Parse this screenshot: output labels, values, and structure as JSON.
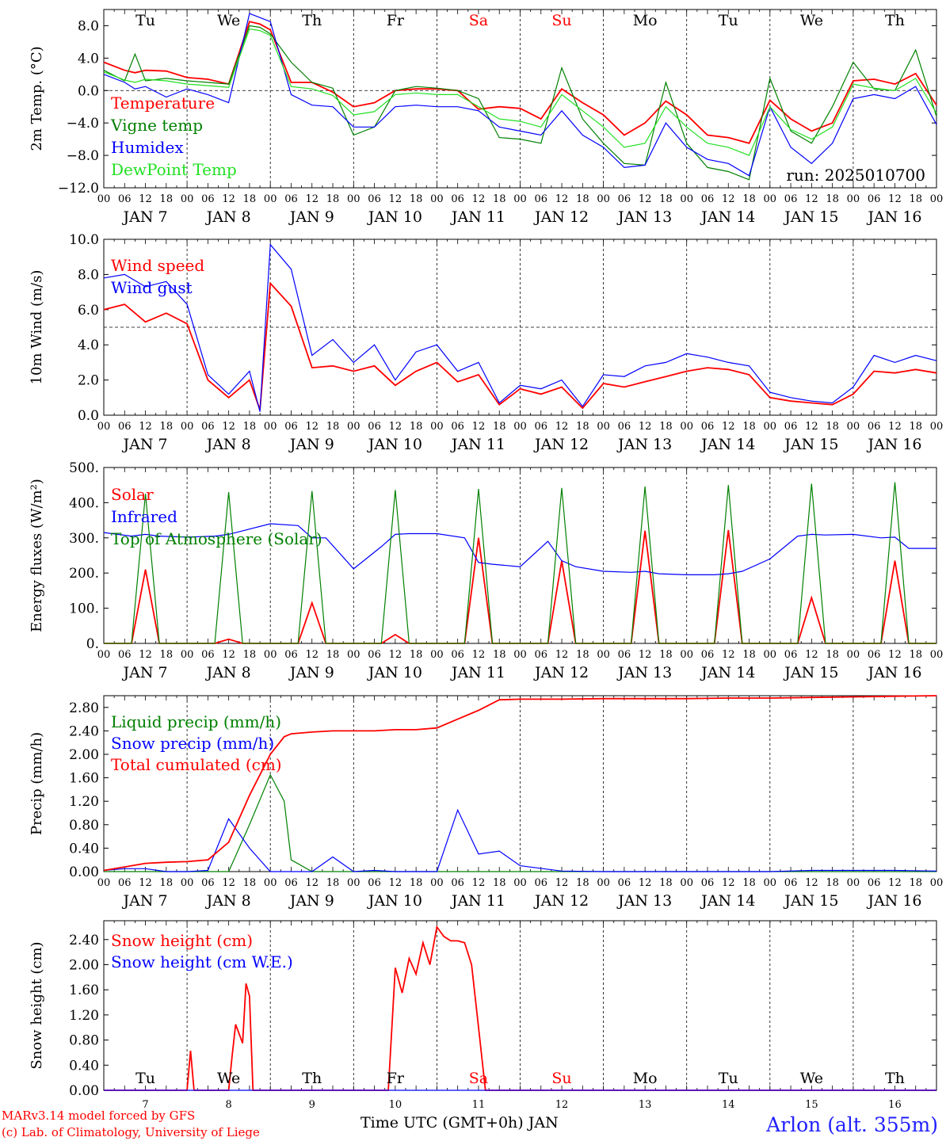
{
  "footer": {
    "model": "MARv3.14 model forced by GFS",
    "credit": "(c) Lab. of Climatology, University of Liege",
    "xlabel": "Time UTC (GMT+0h) JAN",
    "station": "Arlon (alt. 355m)"
  },
  "colors": {
    "red": "#ff0000",
    "green": "#008000",
    "blue": "#0000ff",
    "lightgreen": "#22e022",
    "grid": "#000000"
  },
  "days": {
    "names": [
      "Tu",
      "We",
      "Th",
      "Fr",
      "Sa",
      "Su",
      "Mo",
      "Tu",
      "We",
      "Th"
    ],
    "weekend": [
      false,
      false,
      false,
      false,
      true,
      true,
      false,
      false,
      false,
      false
    ],
    "month_labels": [
      "JAN 7",
      "JAN 8",
      "JAN 9",
      "JAN 10",
      "JAN 11",
      "JAN 12",
      "JAN 13",
      "JAN 14",
      "JAN 15",
      "JAN 16"
    ],
    "numbers": [
      "7",
      "8",
      "9",
      "10",
      "11",
      "12",
      "13",
      "14",
      "15",
      "16"
    ],
    "hour_ticks": [
      "00",
      "06",
      "12",
      "18"
    ],
    "final_tick": "00"
  },
  "chart_data": [
    {
      "type": "line",
      "ylabel": "2m Temp. (°C)",
      "ylim": [
        -12,
        10
      ],
      "yticks": [
        "8.0",
        "4.0",
        "0.0",
        "−4.0",
        "−8.0",
        "−12.0"
      ],
      "ytick_values": [
        8,
        4,
        0,
        -4,
        -8,
        -12
      ],
      "reference_line": 0,
      "show_dow": true,
      "note": "run: 2025010700",
      "x_unit": "hours since JAN 7 00 UTC",
      "x": [
        0,
        6,
        9,
        12,
        18,
        24,
        30,
        36,
        42,
        45,
        48,
        54,
        60,
        66,
        72,
        78,
        84,
        90,
        96,
        102,
        108,
        114,
        120,
        126,
        132,
        138,
        144,
        150,
        156,
        162,
        168,
        174,
        180,
        186,
        192,
        198,
        204,
        210,
        216,
        222,
        228,
        234,
        240
      ],
      "series": [
        {
          "name": "Temperature",
          "color": "#ff0000",
          "values": [
            3.5,
            2.5,
            2.2,
            2.5,
            2.4,
            1.6,
            1.4,
            0.8,
            8.5,
            8.2,
            7.5,
            1.0,
            1.0,
            -0.2,
            -2.0,
            -1.5,
            0.0,
            0.2,
            0.2,
            0.0,
            -2.3,
            -2.0,
            -2.2,
            -3.5,
            0.2,
            -1.5,
            -3.0,
            -5.5,
            -4.0,
            -1.3,
            -3.0,
            -5.5,
            -5.8,
            -6.5,
            -1.2,
            -3.5,
            -5.0,
            -4.0,
            1.2,
            1.4,
            0.8,
            2.1,
            -1.8
          ]
        },
        {
          "name": "Vigne temp",
          "color": "#008000",
          "values": [
            2.5,
            1.2,
            4.5,
            1.2,
            1.5,
            1.2,
            1.0,
            0.8,
            8.0,
            7.8,
            7.0,
            3.5,
            1.0,
            0.3,
            -5.5,
            -4.5,
            0.0,
            0.5,
            0.3,
            0.0,
            -1.0,
            -5.8,
            -6.0,
            -6.5,
            2.8,
            -3.5,
            -6.5,
            -9.0,
            -9.2,
            1.0,
            -6.5,
            -9.5,
            -10.0,
            -11.0,
            1.5,
            -5.0,
            -6.5,
            -2.0,
            3.5,
            0.2,
            0.0,
            5.0,
            -3.2
          ]
        },
        {
          "name": "Humidex",
          "color": "#0000ff",
          "values": [
            2.0,
            1.0,
            0.2,
            0.5,
            -0.8,
            0.2,
            -0.5,
            -1.5,
            9.5,
            9.0,
            8.5,
            -0.5,
            -1.8,
            -2.0,
            -4.5,
            -4.5,
            -2.0,
            -1.8,
            -2.0,
            -2.0,
            -2.5,
            -4.5,
            -5.0,
            -5.5,
            -2.5,
            -5.5,
            -7.0,
            -9.5,
            -9.2,
            -4.0,
            -7.0,
            -8.5,
            -9.0,
            -10.5,
            -2.0,
            -7.0,
            -9.0,
            -6.5,
            -1.0,
            -0.5,
            -1.0,
            0.5,
            -4.2
          ]
        },
        {
          "name": "DewPoint Temp",
          "color": "#22e022",
          "values": [
            2.3,
            1.3,
            1.0,
            1.4,
            1.2,
            0.8,
            0.6,
            0.4,
            7.6,
            7.4,
            6.8,
            0.5,
            0.2,
            -0.6,
            -3.0,
            -2.6,
            -0.5,
            -0.3,
            -0.5,
            -0.5,
            -2.0,
            -3.5,
            -3.8,
            -4.5,
            -0.5,
            -2.5,
            -4.5,
            -7.0,
            -6.5,
            -2.0,
            -4.5,
            -6.5,
            -7.0,
            -8.0,
            -2.0,
            -4.8,
            -6.0,
            -4.5,
            0.8,
            0.3,
            0.0,
            1.5,
            -2.8
          ]
        }
      ]
    },
    {
      "type": "line",
      "ylabel": "10m Wind (m/s)",
      "ylim": [
        0,
        10
      ],
      "yticks": [
        "10.0",
        "8.0",
        "6.0",
        "4.0",
        "2.0",
        "0.0"
      ],
      "ytick_values": [
        10,
        8,
        6,
        4,
        2,
        0
      ],
      "reference_line": 5,
      "show_dow": false,
      "x_unit": "hours since JAN 7 00 UTC",
      "x": [
        0,
        6,
        12,
        18,
        24,
        30,
        36,
        42,
        45,
        48,
        54,
        60,
        66,
        72,
        78,
        84,
        90,
        96,
        102,
        108,
        114,
        120,
        126,
        132,
        138,
        144,
        150,
        156,
        162,
        168,
        174,
        180,
        186,
        192,
        198,
        204,
        210,
        216,
        222,
        228,
        234,
        240
      ],
      "series": [
        {
          "name": "Wind speed",
          "color": "#ff0000",
          "values": [
            6.0,
            6.3,
            5.3,
            5.8,
            5.2,
            2.0,
            1.0,
            2.0,
            0.3,
            7.5,
            6.2,
            2.7,
            2.8,
            2.5,
            2.8,
            1.7,
            2.5,
            3.0,
            1.9,
            2.3,
            0.6,
            1.5,
            1.2,
            1.6,
            0.4,
            1.8,
            1.6,
            1.9,
            2.2,
            2.5,
            2.7,
            2.6,
            2.3,
            1.0,
            0.8,
            0.7,
            0.6,
            1.2,
            2.5,
            2.4,
            2.6,
            2.4
          ]
        },
        {
          "name": "Wind gust",
          "color": "#0000ff",
          "values": [
            7.8,
            8.0,
            7.3,
            7.6,
            6.3,
            2.3,
            1.2,
            2.5,
            0.2,
            9.7,
            8.3,
            3.4,
            4.3,
            3.0,
            4.0,
            2.0,
            3.6,
            4.0,
            2.5,
            3.0,
            0.7,
            1.7,
            1.5,
            2.0,
            0.5,
            2.3,
            2.2,
            2.8,
            3.0,
            3.5,
            3.3,
            3.0,
            2.8,
            1.3,
            1.0,
            0.8,
            0.7,
            1.6,
            3.4,
            3.0,
            3.4,
            3.1
          ]
        }
      ]
    },
    {
      "type": "line",
      "ylabel": "Energy fluxes (W/m²)",
      "ylim": [
        0,
        500
      ],
      "yticks": [
        "500.",
        "400.",
        "300.",
        "200.",
        "100.",
        "0."
      ],
      "ytick_values": [
        500,
        400,
        300,
        200,
        100,
        0
      ],
      "show_dow": false,
      "x_unit": "hours since JAN 7 00 UTC",
      "x": [
        0,
        8,
        12,
        16,
        24,
        32,
        36,
        40,
        48,
        56,
        60,
        64,
        72,
        80,
        84,
        88,
        96,
        104,
        108,
        112,
        120,
        128,
        132,
        136,
        144,
        152,
        156,
        160,
        168,
        176,
        180,
        184,
        192,
        200,
        204,
        208,
        216,
        224,
        228,
        232,
        240
      ],
      "series": [
        {
          "name": "Solar",
          "color": "#ff0000",
          "values": [
            0,
            0,
            210,
            0,
            0,
            0,
            12,
            0,
            0,
            0,
            115,
            0,
            0,
            0,
            25,
            0,
            0,
            0,
            300,
            0,
            0,
            0,
            235,
            0,
            0,
            0,
            320,
            0,
            0,
            0,
            322,
            0,
            0,
            0,
            130,
            0,
            0,
            0,
            235,
            0,
            0
          ]
        },
        {
          "name": "Infrared",
          "color": "#0000ff",
          "values": [
            315,
            305,
            310,
            305,
            302,
            305,
            310,
            320,
            340,
            335,
            300,
            300,
            212,
            275,
            310,
            312,
            312,
            300,
            230,
            225,
            218,
            290,
            235,
            218,
            205,
            202,
            205,
            198,
            195,
            195,
            198,
            205,
            240,
            305,
            310,
            308,
            310,
            300,
            302,
            270,
            270
          ]
        },
        {
          "name": "Top of Atmosphere (Solar)",
          "color": "#008000",
          "values": [
            0,
            0,
            425,
            0,
            0,
            0,
            430,
            0,
            0,
            0,
            433,
            0,
            0,
            0,
            436,
            0,
            0,
            0,
            439,
            0,
            0,
            0,
            442,
            0,
            0,
            0,
            446,
            0,
            0,
            0,
            450,
            0,
            0,
            0,
            454,
            0,
            0,
            0,
            458,
            0,
            0
          ]
        }
      ]
    },
    {
      "type": "line",
      "ylabel": "Precip (mm/h)",
      "ylim": [
        0,
        3.0
      ],
      "yticks": [
        "2.80",
        "2.40",
        "2.00",
        "1.60",
        "1.20",
        "0.80",
        "0.40",
        "0.00"
      ],
      "ytick_values": [
        2.8,
        2.4,
        2.0,
        1.6,
        1.2,
        0.8,
        0.4,
        0
      ],
      "show_dow": false,
      "x_unit": "hours since JAN 7 00 UTC",
      "x": [
        0,
        6,
        12,
        18,
        24,
        30,
        36,
        42,
        48,
        52,
        54,
        60,
        66,
        72,
        78,
        84,
        90,
        96,
        102,
        108,
        114,
        120,
        132,
        144,
        156,
        168,
        180,
        192,
        204,
        216,
        228,
        240
      ],
      "series": [
        {
          "name": "Liquid precip (mm/h)",
          "color": "#008000",
          "values": [
            0,
            0,
            0,
            0,
            0,
            0,
            0,
            0.8,
            1.65,
            1.2,
            0.2,
            0,
            0,
            0,
            0,
            0,
            0,
            0,
            0,
            0,
            0,
            0,
            0,
            0,
            0,
            0,
            0,
            0,
            0,
            0,
            0,
            0
          ]
        },
        {
          "name": "Snow precip (mm/h)",
          "color": "#0000ff",
          "values": [
            0.02,
            0.05,
            0.05,
            0.0,
            0.0,
            0.02,
            0.9,
            0.4,
            0,
            0,
            0,
            0,
            0.25,
            0,
            0.02,
            0,
            0,
            0.0,
            1.05,
            0.3,
            0.35,
            0.1,
            0.01,
            0,
            0,
            0,
            0,
            0,
            0.02,
            0.02,
            0.02,
            0.01
          ]
        },
        {
          "name": "Total cumulated (cm)",
          "color": "#ff0000",
          "values": [
            0.02,
            0.08,
            0.14,
            0.16,
            0.17,
            0.2,
            0.5,
            1.3,
            2.0,
            2.3,
            2.35,
            2.38,
            2.4,
            2.4,
            2.4,
            2.42,
            2.42,
            2.45,
            2.6,
            2.75,
            2.93,
            2.94,
            2.94,
            2.95,
            2.95,
            2.95,
            2.96,
            2.96,
            2.97,
            2.98,
            2.99,
            3.0
          ]
        }
      ]
    },
    {
      "type": "line",
      "ylabel": "Snow height (cm)",
      "ylim": [
        0,
        2.7
      ],
      "yticks": [
        "2.40",
        "2.00",
        "1.60",
        "1.20",
        "0.80",
        "0.40",
        "0.00"
      ],
      "ytick_values": [
        2.4,
        2.0,
        1.6,
        1.2,
        0.8,
        0.4,
        0
      ],
      "show_dow": "bottom",
      "x_unit": "hours since JAN 7 00 UTC",
      "x": [
        0,
        24,
        25,
        26,
        36,
        37,
        38,
        40,
        41,
        42,
        43,
        44,
        72,
        82,
        84,
        86,
        88,
        90,
        92,
        94,
        96,
        98,
        100,
        102,
        104,
        106,
        108,
        110,
        112,
        120,
        240
      ],
      "series": [
        {
          "name": "Snow height (cm)",
          "color": "#ff0000",
          "values": [
            0,
            0,
            0.63,
            0,
            0,
            0.55,
            1.05,
            0.75,
            1.7,
            1.5,
            0,
            0,
            0,
            0,
            1.95,
            1.55,
            2.1,
            1.85,
            2.35,
            2.0,
            2.6,
            2.45,
            2.38,
            2.38,
            2.35,
            2.0,
            1.0,
            0,
            0,
            0,
            0
          ]
        },
        {
          "name": "Snow height (cm W.E.)",
          "color": "#0000ff",
          "values": [
            0,
            0,
            0,
            0,
            0,
            0,
            0,
            0,
            0,
            0,
            0,
            0,
            0,
            0,
            0,
            0,
            0,
            0,
            0,
            0,
            0,
            0,
            0,
            0,
            0,
            0,
            0,
            0,
            0,
            0,
            0
          ]
        }
      ]
    }
  ]
}
